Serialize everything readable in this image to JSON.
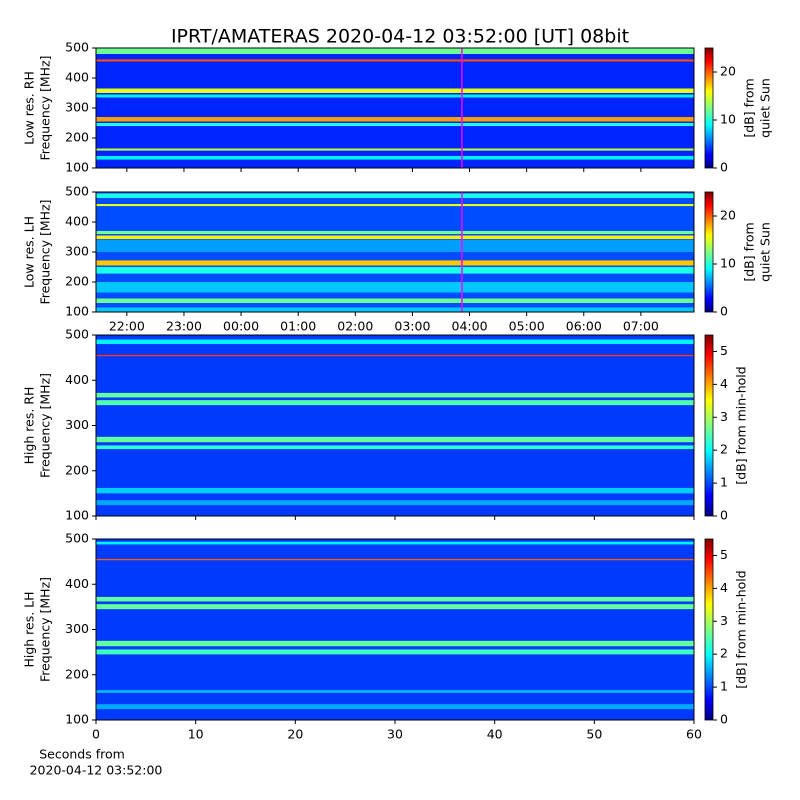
{
  "chart_data": [
    {
      "type": "heatmap",
      "title": "IPRT/AMATERAS 2020-04-12 03:52:00 [UT]   08bit",
      "ylabel": [
        "Low res. RH",
        "Frequency [MHz]"
      ],
      "ylim": [
        500,
        100
      ],
      "yticks": [
        100,
        200,
        300,
        400,
        500
      ],
      "xlim": [
        -2.54,
        7.93
      ],
      "xticks": [
        -2,
        -1,
        0,
        1,
        2,
        3,
        4,
        5,
        6,
        7
      ],
      "xtick_labels": false,
      "marker": {
        "x": 3.8667,
        "color": "#ff00ff"
      },
      "colormap": "jet",
      "clim": [
        0,
        25
      ],
      "cticks": [
        0,
        10,
        20
      ],
      "clabel": [
        "[dB] from",
        "quiet Sun"
      ],
      "background_value": 4,
      "bands": [
        {
          "freq": [
            480,
            500
          ],
          "value": 12
        },
        {
          "freq": [
            455,
            462
          ],
          "value": 20
        },
        {
          "freq": [
            350,
            365
          ],
          "value": 15
        },
        {
          "freq": [
            335,
            345
          ],
          "value": 9
        },
        {
          "freq": [
            255,
            270
          ],
          "value": 18
        },
        {
          "freq": [
            240,
            250
          ],
          "value": 10
        },
        {
          "freq": [
            158,
            165
          ],
          "value": 14
        },
        {
          "freq": [
            128,
            140
          ],
          "value": 9
        }
      ]
    },
    {
      "type": "heatmap",
      "ylabel": [
        "Low res. LH",
        "Frequency [MHz]"
      ],
      "ylim": [
        500,
        100
      ],
      "yticks": [
        100,
        200,
        300,
        400,
        500
      ],
      "xlim": [
        -2.54,
        7.93
      ],
      "xticks": [
        {
          "value": -2,
          "label": "22:00"
        },
        {
          "value": -1,
          "label": "23:00"
        },
        {
          "value": 0,
          "label": "00:00"
        },
        {
          "value": 1,
          "label": "01:00"
        },
        {
          "value": 2,
          "label": "02:00"
        },
        {
          "value": 3,
          "label": "03:00"
        },
        {
          "value": 4,
          "label": "04:00"
        },
        {
          "value": 5,
          "label": "05:00"
        },
        {
          "value": 6,
          "label": "06:00"
        },
        {
          "value": 7,
          "label": "07:00"
        }
      ],
      "xtick_labels": true,
      "marker": {
        "x": 3.8667,
        "color": "#ff00ff"
      },
      "colormap": "jet",
      "clim": [
        0,
        25
      ],
      "cticks": [
        0,
        10,
        20
      ],
      "clabel": [
        "[dB] from",
        "quiet Sun"
      ],
      "background_value": 5,
      "bands": [
        {
          "freq": [
            480,
            495
          ],
          "value": 10
        },
        {
          "freq": [
            453,
            460
          ],
          "value": 15
        },
        {
          "freq": [
            360,
            370
          ],
          "value": 12
        },
        {
          "freq": [
            343,
            355
          ],
          "value": 16
        },
        {
          "freq": [
            300,
            340
          ],
          "value": 7
        },
        {
          "freq": [
            255,
            272
          ],
          "value": 17
        },
        {
          "freq": [
            228,
            250
          ],
          "value": 10
        },
        {
          "freq": [
            165,
            200
          ],
          "value": 8
        },
        {
          "freq": [
            130,
            145
          ],
          "value": 12
        },
        {
          "freq": [
            100,
            115
          ],
          "value": 8
        }
      ]
    },
    {
      "type": "heatmap",
      "ylabel": [
        "High res. RH",
        "Frequency [MHz]"
      ],
      "ylim": [
        500,
        100
      ],
      "yticks": [
        100,
        200,
        300,
        400,
        500
      ],
      "xlim": [
        0,
        60
      ],
      "xticks": [
        0,
        10,
        20,
        30,
        40,
        50,
        60
      ],
      "xtick_labels": false,
      "colormap": "jet",
      "clim": [
        0,
        5.5
      ],
      "cticks": [
        0,
        1,
        2,
        3,
        4,
        5
      ],
      "clabel": [
        "[dB] from min-hold"
      ],
      "background_value": 1,
      "bands": [
        {
          "freq": [
            480,
            490
          ],
          "value": 2
        },
        {
          "freq": [
            453,
            456
          ],
          "value": 4.5
        },
        {
          "freq": [
            362,
            372
          ],
          "value": 2.6
        },
        {
          "freq": [
            345,
            356
          ],
          "value": 2.5
        },
        {
          "freq": [
            263,
            275
          ],
          "value": 2.6
        },
        {
          "freq": [
            248,
            256
          ],
          "value": 2.3
        },
        {
          "freq": [
            150,
            162
          ],
          "value": 1.8
        },
        {
          "freq": [
            124,
            135
          ],
          "value": 1.6
        }
      ]
    },
    {
      "type": "heatmap",
      "ylabel": [
        "High res. LH",
        "Frequency [MHz]"
      ],
      "ylim": [
        500,
        100
      ],
      "yticks": [
        100,
        200,
        300,
        400,
        500
      ],
      "xlim": [
        0,
        60
      ],
      "xticks": [
        0,
        10,
        20,
        30,
        40,
        50,
        60
      ],
      "xtick_labels": true,
      "xlabel": [
        "Seconds from",
        "2020-04-12 03:52:00"
      ],
      "colormap": "jet",
      "clim": [
        0,
        5.5
      ],
      "cticks": [
        0,
        1,
        2,
        3,
        4,
        5
      ],
      "clabel": [
        "[dB] from min-hold"
      ],
      "background_value": 1,
      "bands": [
        {
          "freq": [
            488,
            494
          ],
          "value": 2
        },
        {
          "freq": [
            453,
            456
          ],
          "value": 4.3
        },
        {
          "freq": [
            362,
            372
          ],
          "value": 2.6
        },
        {
          "freq": [
            345,
            356
          ],
          "value": 2.6
        },
        {
          "freq": [
            263,
            275
          ],
          "value": 2.6
        },
        {
          "freq": [
            245,
            256
          ],
          "value": 2.4
        },
        {
          "freq": [
            160,
            166
          ],
          "value": 1.7
        },
        {
          "freq": [
            124,
            135
          ],
          "value": 1.6
        }
      ]
    }
  ]
}
